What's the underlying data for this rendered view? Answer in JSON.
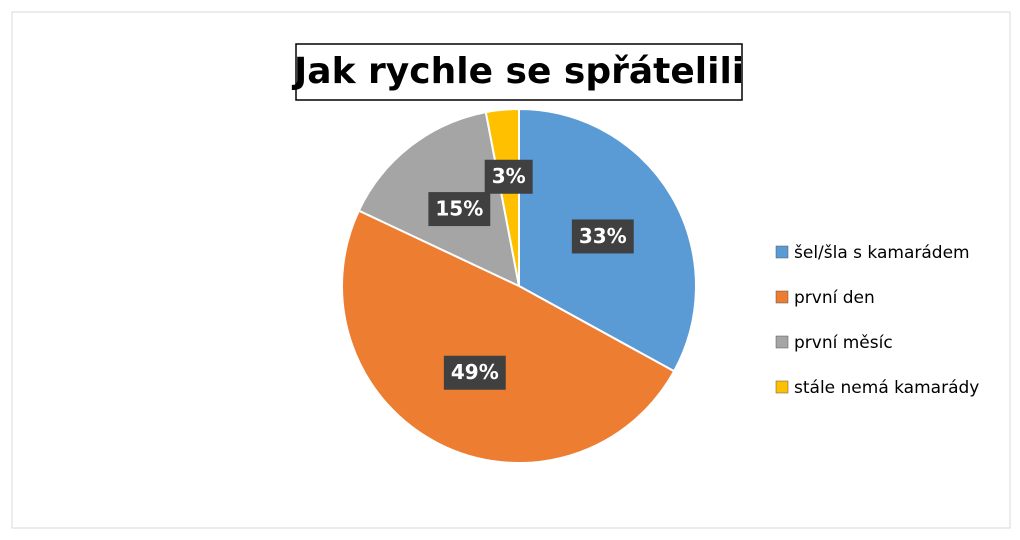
{
  "chart_data": {
    "type": "pie",
    "title": "Jak rychle se spřátelili",
    "categories": [
      "šel/šla s kamarádem",
      "první den",
      "první měsíc",
      "stále nemá kamarády"
    ],
    "values": [
      33,
      49,
      15,
      3
    ],
    "value_labels": [
      "33%",
      "49%",
      "15%",
      "3%"
    ],
    "colors": [
      "#5b9bd5",
      "#ed7d31",
      "#a5a5a5",
      "#ffc000"
    ],
    "legend": "right"
  }
}
